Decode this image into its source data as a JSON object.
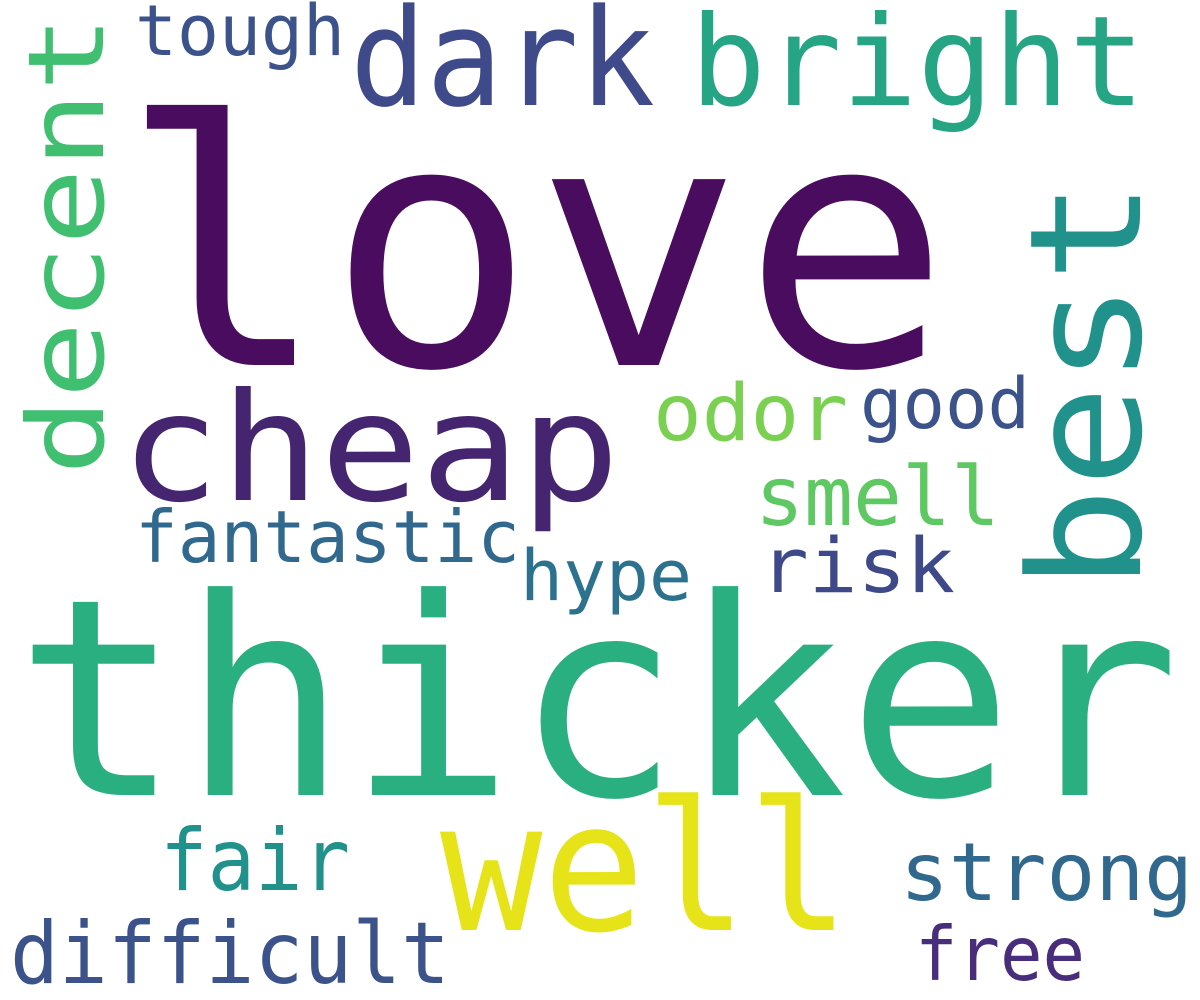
{
  "word_cloud": {
    "palette": "viridis",
    "background": "#ffffff",
    "words": [
      {
        "key": "love",
        "text": "love",
        "color": "#4a0c5e"
      },
      {
        "key": "thicker",
        "text": "thicker",
        "color": "#2ab080"
      },
      {
        "key": "cheap",
        "text": "cheap",
        "color": "#452470"
      },
      {
        "key": "dark",
        "text": "dark",
        "color": "#3e4a8a"
      },
      {
        "key": "bright",
        "text": "bright",
        "color": "#25a584"
      },
      {
        "key": "best",
        "text": "best",
        "color": "#21918c"
      },
      {
        "key": "decent",
        "text": "decent",
        "color": "#3fbf6f"
      },
      {
        "key": "well",
        "text": "well",
        "color": "#e6e419"
      },
      {
        "key": "tough",
        "text": "tough",
        "color": "#3b528b"
      },
      {
        "key": "odor",
        "text": "odor",
        "color": "#7ad151"
      },
      {
        "key": "good",
        "text": "good",
        "color": "#3b528b"
      },
      {
        "key": "smell",
        "text": "smell",
        "color": "#5ec962"
      },
      {
        "key": "fantastic",
        "text": "fantastic",
        "color": "#31688e"
      },
      {
        "key": "risk",
        "text": "risk",
        "color": "#3e4989"
      },
      {
        "key": "hype",
        "text": "hype",
        "color": "#2c728e"
      },
      {
        "key": "fair",
        "text": "fair",
        "color": "#21918c"
      },
      {
        "key": "strong",
        "text": "strong",
        "color": "#31688e"
      },
      {
        "key": "difficult",
        "text": "difficult",
        "color": "#3b528b"
      },
      {
        "key": "free",
        "text": "free",
        "color": "#472d7b"
      }
    ]
  }
}
